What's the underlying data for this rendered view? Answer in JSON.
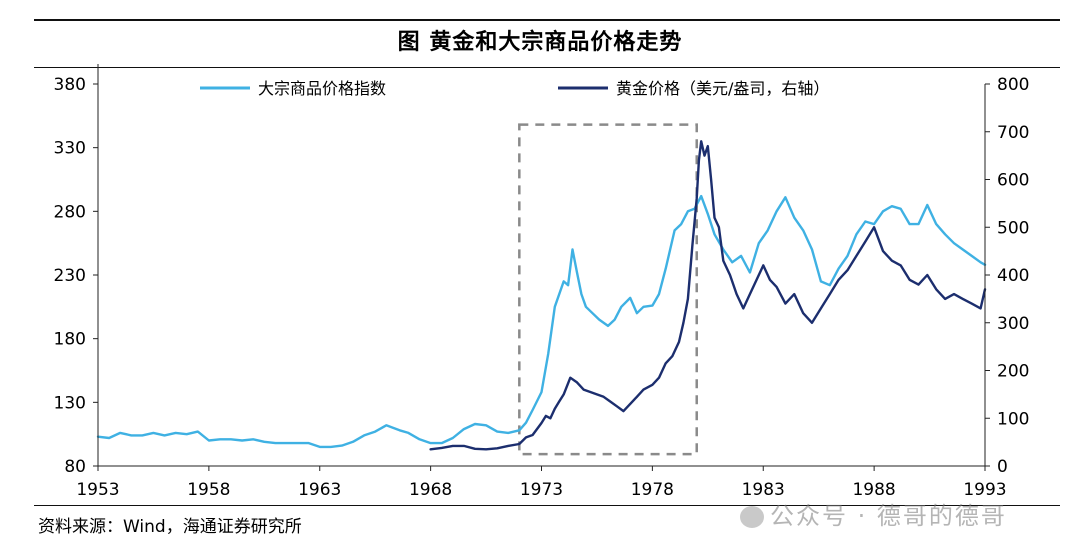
{
  "chart_data": {
    "type": "line",
    "title": "图  黄金和大宗商品价格走势",
    "source": "资料来源：Wind，海通证券研究所",
    "watermark": "公众号 · 德哥的德哥",
    "x_ticks": [
      "1953",
      "1958",
      "1963",
      "1968",
      "1973",
      "1978",
      "1983",
      "1988",
      "1993"
    ],
    "xlim": [
      1953,
      1993
    ],
    "y_left": {
      "ticks": [
        "80",
        "130",
        "180",
        "230",
        "280",
        "330",
        "380"
      ],
      "lim": [
        80,
        380
      ]
    },
    "y_right": {
      "ticks": [
        "0",
        "100",
        "200",
        "300",
        "400",
        "500",
        "600",
        "700",
        "800"
      ],
      "lim": [
        0,
        800
      ]
    },
    "legend_position": "top",
    "highlight_box": {
      "x": [
        1972.0,
        1980.0
      ],
      "y_right": [
        25,
        715
      ]
    },
    "series": [
      {
        "name": "大宗商品价格指数",
        "axis": "left",
        "color": "#3fb1e3",
        "x": [
          1953.0,
          1953.5,
          1954.0,
          1954.5,
          1955.0,
          1955.5,
          1956.0,
          1956.5,
          1957.0,
          1957.5,
          1958.0,
          1958.5,
          1959.0,
          1959.5,
          1960.0,
          1960.5,
          1961.0,
          1961.5,
          1962.0,
          1962.5,
          1963.0,
          1963.5,
          1964.0,
          1964.5,
          1965.0,
          1965.5,
          1966.0,
          1966.3,
          1966.6,
          1967.0,
          1967.5,
          1968.0,
          1968.5,
          1969.0,
          1969.5,
          1970.0,
          1970.5,
          1971.0,
          1971.5,
          1972.0,
          1972.3,
          1972.6,
          1973.0,
          1973.3,
          1973.6,
          1974.0,
          1974.2,
          1974.4,
          1974.6,
          1974.8,
          1975.0,
          1975.3,
          1975.6,
          1976.0,
          1976.3,
          1976.6,
          1977.0,
          1977.3,
          1977.6,
          1978.0,
          1978.3,
          1978.6,
          1979.0,
          1979.3,
          1979.6,
          1979.9,
          1980.2,
          1980.5,
          1980.8,
          1981.2,
          1981.6,
          1982.0,
          1982.4,
          1982.8,
          1983.2,
          1983.6,
          1984.0,
          1984.4,
          1984.8,
          1985.2,
          1985.6,
          1986.0,
          1986.4,
          1986.8,
          1987.2,
          1987.6,
          1988.0,
          1988.4,
          1988.8,
          1989.2,
          1989.6,
          1990.0,
          1990.4,
          1990.8,
          1991.2,
          1991.6,
          1992.0,
          1992.4,
          1992.8,
          1993.0
        ],
        "y": [
          103,
          102,
          106,
          104,
          104,
          106,
          104,
          106,
          105,
          107,
          100,
          101,
          101,
          100,
          101,
          99,
          98,
          98,
          98,
          98,
          95,
          95,
          96,
          99,
          104,
          107,
          112,
          110,
          108,
          106,
          101,
          98,
          98,
          102,
          109,
          113,
          112,
          107,
          106,
          108,
          114,
          124,
          138,
          168,
          205,
          225,
          222,
          250,
          232,
          215,
          205,
          200,
          195,
          190,
          195,
          205,
          212,
          200,
          205,
          206,
          215,
          235,
          265,
          270,
          280,
          282,
          292,
          278,
          262,
          250,
          240,
          245,
          232,
          255,
          265,
          280,
          291,
          275,
          265,
          250,
          225,
          222,
          235,
          245,
          262,
          272,
          270,
          280,
          284,
          282,
          270,
          270,
          285,
          270,
          262,
          255,
          250,
          245,
          240,
          238
        ]
      },
      {
        "name": "黄金价格（美元/盎司，右轴）",
        "axis": "right",
        "color": "#1c2e6e",
        "x": [
          1968.0,
          1968.5,
          1969.0,
          1969.5,
          1970.0,
          1970.5,
          1971.0,
          1971.5,
          1972.0,
          1972.3,
          1972.6,
          1973.0,
          1973.2,
          1973.4,
          1973.6,
          1973.8,
          1974.0,
          1974.3,
          1974.6,
          1974.9,
          1975.2,
          1975.5,
          1975.8,
          1976.1,
          1976.4,
          1976.7,
          1977.0,
          1977.3,
          1977.6,
          1978.0,
          1978.3,
          1978.6,
          1978.9,
          1979.2,
          1979.4,
          1979.6,
          1979.8,
          1980.0,
          1980.1,
          1980.2,
          1980.35,
          1980.5,
          1980.65,
          1980.8,
          1981.0,
          1981.2,
          1981.5,
          1981.8,
          1982.1,
          1982.4,
          1982.7,
          1983.0,
          1983.3,
          1983.6,
          1984.0,
          1984.4,
          1984.8,
          1985.2,
          1985.6,
          1986.0,
          1986.4,
          1986.8,
          1987.2,
          1987.6,
          1988.0,
          1988.4,
          1988.8,
          1989.2,
          1989.6,
          1990.0,
          1990.4,
          1990.8,
          1991.2,
          1991.6,
          1992.0,
          1992.4,
          1992.8,
          1993.0
        ],
        "y": [
          35,
          38,
          42,
          42,
          36,
          35,
          37,
          42,
          46,
          60,
          65,
          90,
          105,
          100,
          120,
          135,
          150,
          185,
          175,
          160,
          155,
          150,
          145,
          135,
          125,
          115,
          130,
          145,
          160,
          170,
          185,
          215,
          230,
          260,
          300,
          350,
          460,
          560,
          640,
          680,
          650,
          670,
          600,
          520,
          500,
          430,
          400,
          360,
          330,
          360,
          390,
          420,
          390,
          375,
          340,
          360,
          320,
          300,
          330,
          360,
          390,
          410,
          440,
          470,
          500,
          450,
          430,
          420,
          390,
          380,
          400,
          370,
          350,
          360,
          350,
          340,
          330,
          370
        ]
      }
    ]
  }
}
